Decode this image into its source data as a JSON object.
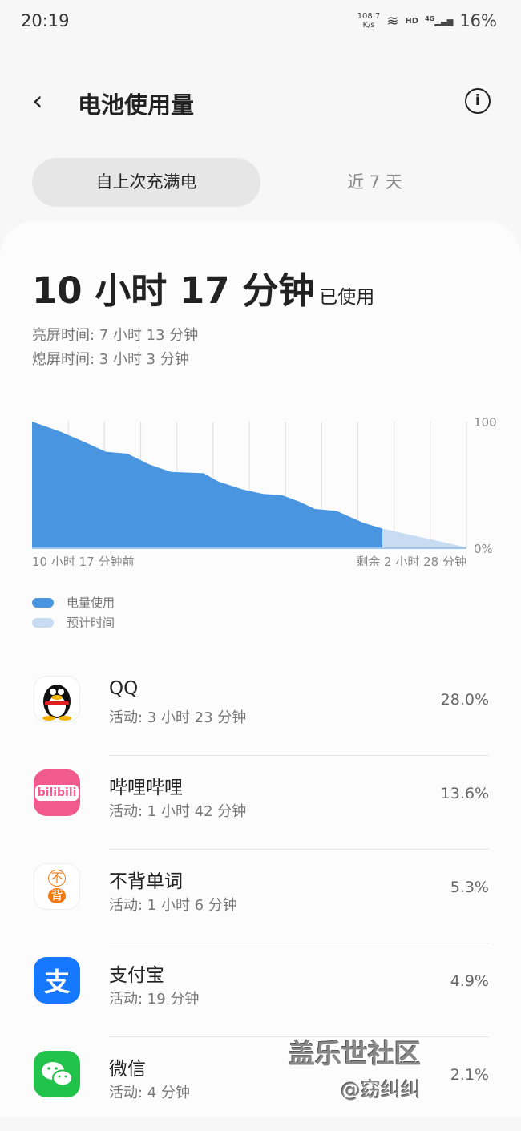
{
  "status": {
    "time": "20:19",
    "speed": "108.7",
    "speed_unit": "K/s",
    "hd": "HD",
    "net": "4G",
    "battery": "16%"
  },
  "header": {
    "title": "电池使用量"
  },
  "tabs": [
    {
      "label": "自上次充满电",
      "active": true
    },
    {
      "label": "近 7 天",
      "active": false
    }
  ],
  "summary": {
    "total": "10 小时 17 分钟",
    "used_label": "已使用",
    "screen_on": "亮屏时间:  7 小时 13 分钟",
    "screen_off": "熄屏时间:  3 小时 3 分钟"
  },
  "chart_data": {
    "type": "area",
    "ytick_top": "100",
    "ytick_bottom": "0%",
    "x_start_label": "10 小时 17 分钟前",
    "x_end_label": "剩余 2 小时 28 分钟",
    "ylim": [
      0,
      100
    ],
    "xlim_hours": [
      0,
      12.75
    ],
    "series": [
      {
        "name": "电量使用",
        "color": "#4a95e0",
        "x": [
          0,
          0.83,
          1.61,
          2.16,
          2.8,
          3.44,
          4.08,
          5.04,
          5.46,
          6.19,
          6.79,
          7.34,
          7.84,
          8.3,
          8.94,
          9.72,
          10.28
        ],
        "y": [
          100,
          92,
          83,
          76,
          74.5,
          66,
          60,
          59,
          52.5,
          46,
          42.5,
          41.5,
          36.5,
          30.6,
          29,
          19.6,
          15
        ]
      },
      {
        "name": "预计时间",
        "color": "#c7dcf3",
        "x": [
          10.28,
          12.75
        ],
        "y": [
          15,
          0
        ]
      }
    ]
  },
  "apps": [
    {
      "name": "QQ",
      "activity": "活动: 3 小时 23 分钟",
      "percent": "28.0%",
      "icon": "qq-icon"
    },
    {
      "name": "哔哩哔哩",
      "activity": "活动: 1 小时 42 分钟",
      "percent": "13.6%",
      "icon": "bilibili-icon",
      "icon_text": "bilibili"
    },
    {
      "name": "不背单词",
      "activity": "活动: 1 小时 6 分钟",
      "percent": "5.3%",
      "icon": "bubei-icon",
      "icon_text1": "不",
      "icon_text2": "背"
    },
    {
      "name": "支付宝",
      "activity": "活动: 19 分钟",
      "percent": "4.9%",
      "icon": "alipay-icon",
      "icon_text": "支"
    },
    {
      "name": "微信",
      "activity": "活动: 4 分钟",
      "percent": "2.1%",
      "icon": "wechat-icon"
    }
  ],
  "watermark": {
    "line1": "盖乐世社区",
    "line2": "@窈纠纠"
  }
}
